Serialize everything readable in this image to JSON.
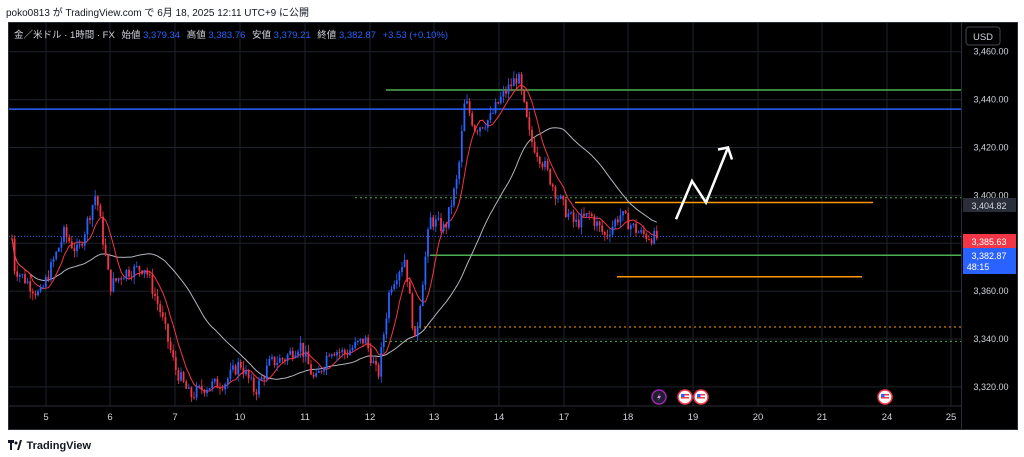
{
  "header": {
    "publish_line": "poko0813 が TradingView.com で 6月 18, 2025 12:11 UTC+9 に公開"
  },
  "legend": {
    "symbol": "金／米ドル · 1時間 · FX",
    "open_label": "始値",
    "open_value": "3,379.34",
    "high_label": "高値",
    "high_value": "3,383.76",
    "low_label": "安値",
    "low_value": "3,379.21",
    "close_label": "終値",
    "close_value": "3,382.87",
    "change_value": "+3.53 (+0.10%)"
  },
  "currency_button": "USD",
  "price_labels": {
    "resistance": "3,404.82",
    "top_tag": "3,385.63",
    "current_price": "3,382.87",
    "countdown": "48:15"
  },
  "footer_brand": "TradingView",
  "colors": {
    "background": "#000000",
    "bull": "#2962ff",
    "bear": "#f23645",
    "ma_fast": "#f23645",
    "ma_slow": "#b2b5be",
    "level_green": "#4caf50",
    "level_blue": "#2962ff",
    "level_orange": "#ff9800",
    "arrow": "#ffffff",
    "grid": "#1e222d"
  },
  "chart_data": {
    "type": "candlestick",
    "ylim": [
      3312,
      3472
    ],
    "y_ticks": [
      "3,320.00",
      "3,340.00",
      "3,360.00",
      "3,380.00",
      "3,400.00",
      "3,420.00",
      "3,440.00",
      "3,460.00"
    ],
    "x_ticks": [
      "5",
      "6",
      "7",
      "10",
      "11",
      "12",
      "13",
      "14",
      "17",
      "18",
      "19",
      "20",
      "21",
      "24",
      "25"
    ],
    "grid": true,
    "levels": [
      {
        "value": 3444,
        "color": "green"
      },
      {
        "value": 3436,
        "color": "blue"
      },
      {
        "value": 3399,
        "color": "green-dotted"
      },
      {
        "value": 3397,
        "color": "orange"
      },
      {
        "value": 3375,
        "color": "green"
      },
      {
        "value": 3366,
        "color": "orange"
      },
      {
        "value": 3345,
        "color": "orange-dotted"
      },
      {
        "value": 3339,
        "color": "green-dotted"
      }
    ],
    "projection_arrow": [
      [
        3390,
        0
      ],
      [
        3406,
        0
      ],
      [
        3397,
        0
      ],
      [
        3420,
        0
      ]
    ],
    "events": [
      {
        "icon": "lightning-icon",
        "x_tick": "18"
      },
      {
        "icon": "flag-icon",
        "x_tick": "19"
      },
      {
        "icon": "flag-icon",
        "x_tick": "19"
      },
      {
        "icon": "flag-icon",
        "x_tick": "24"
      }
    ]
  }
}
